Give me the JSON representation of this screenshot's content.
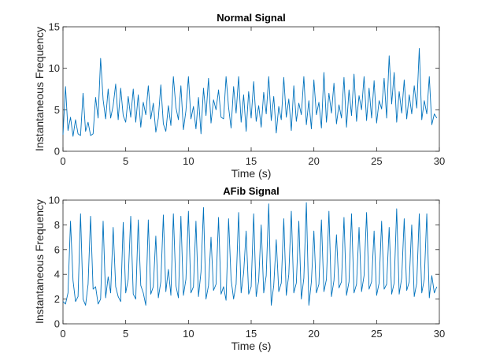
{
  "chart_data": [
    {
      "type": "line",
      "title": "Normal Signal",
      "xlabel": "Time (s)",
      "ylabel": "Instantaneous Frequency",
      "xlim": [
        0,
        30
      ],
      "ylim": [
        0,
        15
      ],
      "xticks": [
        0,
        5,
        10,
        15,
        20,
        25,
        30
      ],
      "yticks": [
        0,
        5,
        10,
        15
      ],
      "xtick_labels": [
        "0",
        "5",
        "10",
        "15",
        "20",
        "25",
        "30"
      ],
      "ytick_labels": [
        "0",
        "5",
        "10",
        "15"
      ],
      "grid": false,
      "series": [
        {
          "color": "#0072BD",
          "x": [
            0.0,
            0.2,
            0.4,
            0.6,
            0.8,
            1.0,
            1.2,
            1.4,
            1.6,
            1.8,
            2.0,
            2.2,
            2.4,
            2.6,
            2.8,
            3.0,
            3.2,
            3.4,
            3.6,
            3.8,
            4.0,
            4.2,
            4.4,
            4.6,
            4.8,
            5.0,
            5.2,
            5.4,
            5.6,
            5.8,
            6.0,
            6.2,
            6.4,
            6.6,
            6.8,
            7.0,
            7.2,
            7.4,
            7.6,
            7.8,
            8.0,
            8.2,
            8.4,
            8.6,
            8.8,
            9.0,
            9.2,
            9.4,
            9.6,
            9.8,
            10.0,
            10.2,
            10.4,
            10.6,
            10.8,
            11.0,
            11.2,
            11.4,
            11.6,
            11.8,
            12.0,
            12.2,
            12.4,
            12.6,
            12.8,
            13.0,
            13.2,
            13.4,
            13.6,
            13.8,
            14.0,
            14.2,
            14.4,
            14.6,
            14.8,
            15.0,
            15.2,
            15.4,
            15.6,
            15.8,
            16.0,
            16.2,
            16.4,
            16.6,
            16.8,
            17.0,
            17.2,
            17.4,
            17.6,
            17.8,
            18.0,
            18.2,
            18.4,
            18.6,
            18.8,
            19.0,
            19.2,
            19.4,
            19.6,
            19.8,
            20.0,
            20.2,
            20.4,
            20.6,
            20.8,
            21.0,
            21.2,
            21.4,
            21.6,
            21.8,
            22.0,
            22.2,
            22.4,
            22.6,
            22.8,
            23.0,
            23.2,
            23.4,
            23.6,
            23.8,
            24.0,
            24.2,
            24.4,
            24.6,
            24.8,
            25.0,
            25.2,
            25.4,
            25.6,
            25.8,
            26.0,
            26.2,
            26.4,
            26.6,
            26.8,
            27.0,
            27.2,
            27.4,
            27.6,
            27.8,
            28.0,
            28.2,
            28.4,
            28.6,
            28.8,
            29.0,
            29.2,
            29.4,
            29.6,
            29.8
          ],
          "y": [
            2.0,
            7.8,
            2.5,
            4.1,
            1.8,
            3.8,
            2.1,
            1.9,
            7.0,
            2.4,
            3.5,
            1.9,
            2.1,
            6.5,
            4.0,
            11.2,
            6.2,
            3.9,
            7.5,
            4.0,
            5.5,
            8.1,
            3.8,
            7.6,
            4.3,
            3.5,
            6.6,
            4.1,
            7.5,
            3.5,
            6.8,
            2.9,
            5.9,
            4.4,
            7.9,
            3.9,
            5.8,
            2.3,
            4.0,
            8.0,
            3.3,
            2.4,
            5.5,
            3.1,
            9.0,
            5.3,
            3.8,
            7.9,
            2.6,
            4.9,
            9.0,
            3.9,
            5.4,
            2.7,
            6.5,
            2.1,
            7.6,
            4.3,
            8.8,
            3.4,
            6.2,
            5.0,
            7.4,
            4.1,
            3.9,
            9.0,
            5.3,
            2.8,
            7.8,
            4.6,
            9.0,
            3.5,
            6.8,
            2.4,
            7.2,
            4.0,
            8.4,
            3.6,
            5.5,
            2.9,
            7.1,
            4.5,
            9.0,
            3.7,
            6.6,
            2.2,
            5.4,
            3.8,
            8.9,
            4.1,
            6.3,
            2.5,
            7.9,
            3.6,
            5.8,
            4.4,
            9.0,
            3.2,
            6.1,
            2.7,
            8.6,
            4.4,
            5.9,
            2.8,
            9.5,
            3.5,
            7.0,
            4.6,
            8.2,
            3.3,
            5.6,
            4.0,
            8.9,
            2.9,
            7.4,
            4.3,
            9.3,
            3.6,
            6.7,
            5.0,
            9.0,
            3.7,
            7.6,
            4.0,
            8.5,
            3.4,
            6.1,
            5.1,
            8.8,
            4.0,
            11.5,
            5.7,
            9.5,
            3.5,
            7.2,
            4.6,
            8.6,
            3.9,
            6.8,
            4.5,
            7.9,
            5.2,
            12.4,
            3.8,
            6.1,
            4.5,
            9.0,
            3.2,
            4.5,
            4.0
          ]
        }
      ]
    },
    {
      "type": "line",
      "title": "AFib Signal",
      "xlabel": "Time (s)",
      "ylabel": "Instantaneous Frequency",
      "xlim": [
        0,
        30
      ],
      "ylim": [
        0,
        10
      ],
      "xticks": [
        0,
        5,
        10,
        15,
        20,
        25,
        30
      ],
      "yticks": [
        0,
        2,
        4,
        6,
        8,
        10
      ],
      "xtick_labels": [
        "0",
        "5",
        "10",
        "15",
        "20",
        "25",
        "30"
      ],
      "ytick_labels": [
        "0",
        "2",
        "4",
        "6",
        "8",
        "10"
      ],
      "grid": false,
      "series": [
        {
          "color": "#0072BD",
          "x": [
            0.0,
            0.2,
            0.4,
            0.6,
            0.8,
            1.0,
            1.2,
            1.4,
            1.6,
            1.8,
            2.0,
            2.2,
            2.4,
            2.6,
            2.8,
            3.0,
            3.2,
            3.4,
            3.6,
            3.8,
            4.0,
            4.2,
            4.4,
            4.6,
            4.8,
            5.0,
            5.2,
            5.4,
            5.6,
            5.8,
            6.0,
            6.2,
            6.4,
            6.6,
            6.8,
            7.0,
            7.2,
            7.4,
            7.6,
            7.8,
            8.0,
            8.2,
            8.4,
            8.6,
            8.8,
            9.0,
            9.2,
            9.4,
            9.6,
            9.8,
            10.0,
            10.2,
            10.4,
            10.6,
            10.8,
            11.0,
            11.2,
            11.4,
            11.6,
            11.8,
            12.0,
            12.2,
            12.4,
            12.6,
            12.8,
            13.0,
            13.2,
            13.4,
            13.6,
            13.8,
            14.0,
            14.2,
            14.4,
            14.6,
            14.8,
            15.0,
            15.2,
            15.4,
            15.6,
            15.8,
            16.0,
            16.2,
            16.4,
            16.6,
            16.8,
            17.0,
            17.2,
            17.4,
            17.6,
            17.8,
            18.0,
            18.2,
            18.4,
            18.6,
            18.8,
            19.0,
            19.2,
            19.4,
            19.6,
            19.8,
            20.0,
            20.2,
            20.4,
            20.6,
            20.8,
            21.0,
            21.2,
            21.4,
            21.6,
            21.8,
            22.0,
            22.2,
            22.4,
            22.6,
            22.8,
            23.0,
            23.2,
            23.4,
            23.6,
            23.8,
            24.0,
            24.2,
            24.4,
            24.6,
            24.8,
            25.0,
            25.2,
            25.4,
            25.6,
            25.8,
            26.0,
            26.2,
            26.4,
            26.6,
            26.8,
            27.0,
            27.2,
            27.4,
            27.6,
            27.8,
            28.0,
            28.2,
            28.4,
            28.6,
            28.8,
            29.0,
            29.2,
            29.4,
            29.6,
            29.8
          ],
          "y": [
            1.8,
            1.6,
            2.5,
            8.3,
            3.5,
            1.8,
            2.2,
            8.9,
            2.0,
            1.5,
            3.2,
            8.7,
            2.8,
            3.0,
            1.6,
            2.0,
            8.3,
            2.1,
            3.8,
            2.5,
            7.8,
            3.0,
            2.2,
            1.8,
            8.2,
            2.5,
            3.6,
            8.7,
            2.4,
            2.0,
            8.4,
            3.1,
            2.5,
            1.5,
            8.4,
            2.4,
            3.0,
            7.1,
            2.1,
            3.4,
            8.8,
            2.6,
            4.4,
            2.3,
            8.9,
            3.1,
            2.1,
            8.7,
            2.3,
            3.6,
            9.1,
            2.5,
            3.0,
            8.3,
            2.2,
            4.2,
            9.4,
            2.0,
            3.1,
            7.0,
            2.7,
            3.2,
            8.6,
            2.4,
            3.0,
            1.9,
            8.5,
            3.6,
            2.0,
            3.2,
            9.0,
            2.5,
            4.1,
            7.5,
            2.4,
            3.0,
            8.9,
            2.2,
            3.5,
            8.0,
            2.5,
            3.9,
            9.7,
            1.5,
            3.1,
            6.8,
            2.6,
            3.3,
            8.5,
            2.3,
            4.0,
            9.1,
            2.5,
            3.3,
            8.3,
            2.0,
            3.7,
            9.8,
            1.5,
            3.4,
            7.5,
            2.5,
            3.2,
            8.4,
            2.6,
            3.6,
            9.1,
            2.2,
            3.5,
            7.2,
            2.9,
            3.4,
            8.6,
            2.3,
            3.4,
            8.9,
            2.5,
            3.2,
            7.8,
            2.6,
            3.9,
            9.0,
            2.8,
            3.4,
            7.5,
            2.3,
            3.3,
            8.3,
            2.8,
            3.2,
            7.8,
            2.4,
            3.3,
            9.3,
            2.4,
            3.7,
            8.5,
            2.7,
            3.4,
            8.0,
            2.2,
            3.3,
            8.9,
            2.5,
            3.6,
            8.9,
            2.1,
            3.9,
            2.5,
            3.0
          ]
        }
      ]
    }
  ]
}
